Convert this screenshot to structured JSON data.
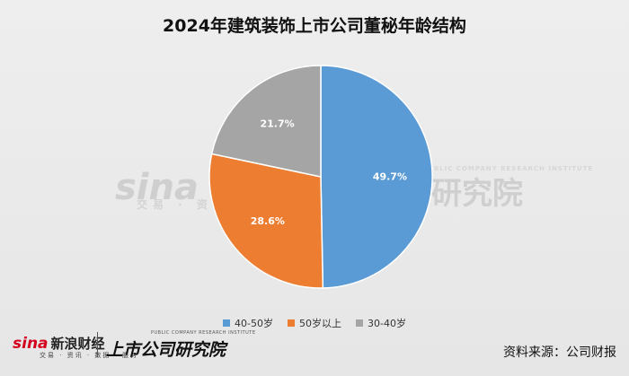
{
  "chart_data": {
    "type": "pie",
    "title": "2024年建筑装饰上市公司董秘年龄结构",
    "categories": [
      "40-50岁",
      "50岁以上",
      "30-40岁"
    ],
    "values": [
      49.7,
      28.6,
      21.7
    ],
    "labels": [
      "49.7%",
      "28.6%",
      "21.7%"
    ],
    "colors": [
      "#5b9bd5",
      "#ed7d31",
      "#a5a5a5"
    ],
    "legend_position": "bottom"
  },
  "watermark": {
    "brand": "sina 新浪",
    "brand_sub": "交易 · 资讯",
    "institute": "研究院",
    "institute_en": "PUBLIC COMPANY RESEARCH INSTITUTE"
  },
  "footer": {
    "sina_mark": "sina",
    "sina_name": "新浪财经",
    "sina_sub": "交易 · 资讯 · 数据 · 服务",
    "institute_name": "上市公司研究院",
    "institute_en": "PUBLIC COMPANY RESEARCH INSTITUTE",
    "source": "资料来源：公司财报"
  }
}
